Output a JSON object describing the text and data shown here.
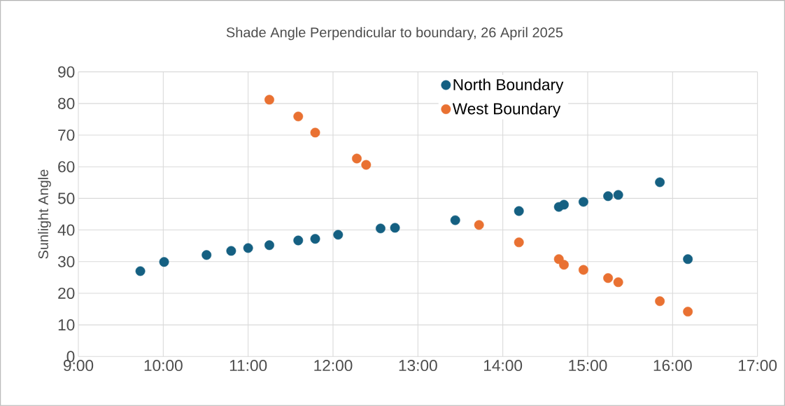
{
  "chart_data": {
    "type": "scatter",
    "title": "Shade Angle Perpendicular to boundary, 26 April 2025",
    "ylabel": "Sunlight Angle",
    "x": [
      9.73,
      10.01,
      10.51,
      10.8,
      11.0,
      11.25,
      11.59,
      11.79,
      12.06,
      12.56,
      12.73,
      13.44,
      14.19,
      14.66,
      14.72,
      14.95,
      15.24,
      15.36,
      15.85,
      16.18
    ],
    "series": [
      {
        "name": "North Boundary",
        "color": "#156082",
        "values": [
          27.0,
          29.9,
          32.1,
          33.4,
          34.3,
          35.2,
          36.7,
          37.2,
          38.5,
          40.5,
          40.7,
          43.1,
          46.0,
          47.3,
          48.0,
          48.9,
          50.7,
          51.1,
          55.1,
          30.8
        ]
      },
      {
        "name": "West Boundary",
        "color": "#e97132",
        "x": [
          11.25,
          11.59,
          11.79,
          12.28,
          12.39,
          13.72,
          14.19,
          14.66,
          14.72,
          14.95,
          15.24,
          15.36,
          15.85,
          16.18
        ],
        "values": [
          81.2,
          75.9,
          70.8,
          62.6,
          60.6,
          41.6,
          36.1,
          30.8,
          29.0,
          27.4,
          24.8,
          23.5,
          17.5,
          14.2
        ]
      }
    ],
    "xlim": [
      9,
      17
    ],
    "ylim": [
      0,
      90
    ],
    "xticks": [
      {
        "value": 9,
        "label": "9:00"
      },
      {
        "value": 10,
        "label": "10:00"
      },
      {
        "value": 11,
        "label": "11:00"
      },
      {
        "value": 12,
        "label": "12:00"
      },
      {
        "value": 13,
        "label": "13:00"
      },
      {
        "value": 14,
        "label": "14:00"
      },
      {
        "value": 15,
        "label": "15:00"
      },
      {
        "value": 16,
        "label": "16:00"
      },
      {
        "value": 17,
        "label": "17:00"
      }
    ],
    "yticks": [
      0,
      10,
      20,
      30,
      40,
      50,
      60,
      70,
      80,
      90
    ],
    "grid": true,
    "legend": "top right",
    "marker": "circle"
  }
}
